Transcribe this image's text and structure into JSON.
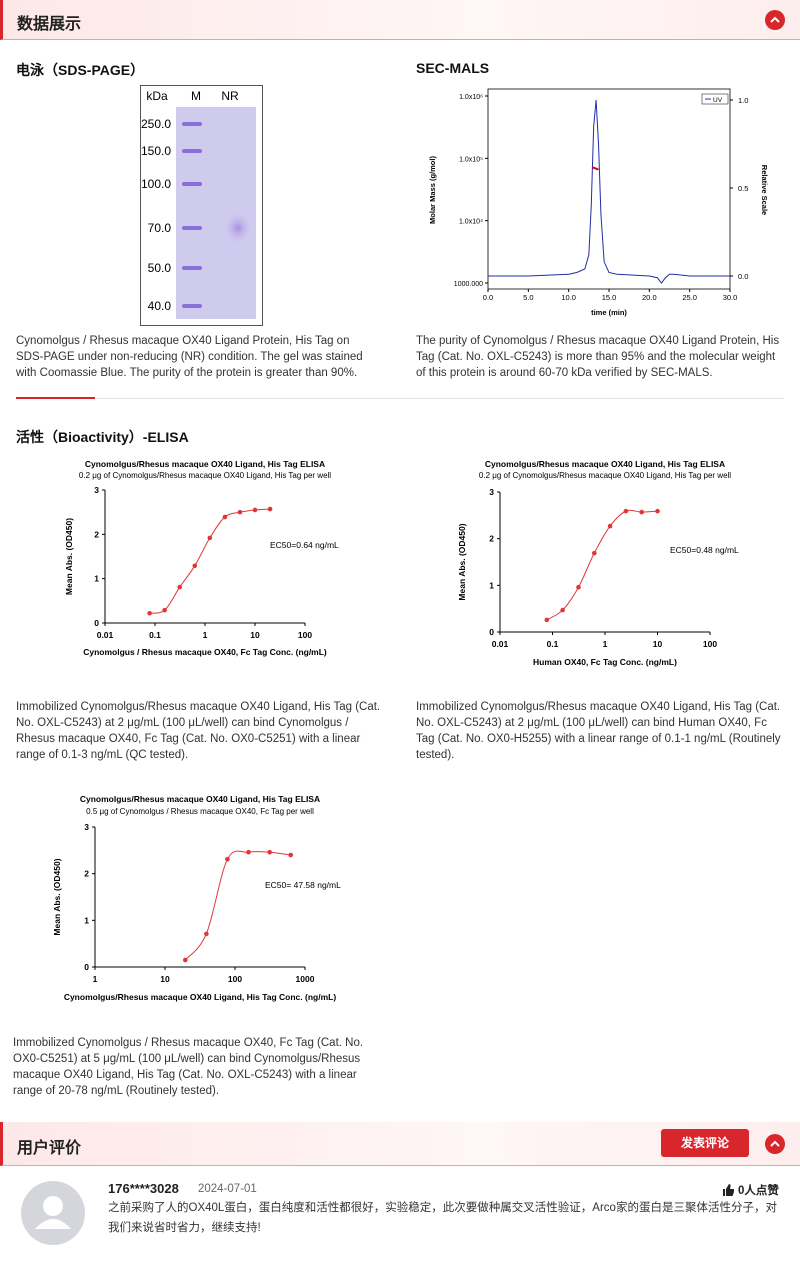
{
  "data_display": {
    "title": "数据展示",
    "sds_page": {
      "title": "电泳（SDS-PAGE）",
      "gel": {
        "header": [
          "kDa",
          "M",
          "NR"
        ],
        "markers": [
          "250.0",
          "150.0",
          "100.0",
          "70.0",
          "50.0",
          "40.0"
        ]
      },
      "caption": "Cynomolgus / Rhesus macaque OX40 Ligand Protein, His Tag on SDS-PAGE under non-reducing (NR) condition. The gel was stained with Coomassie Blue. The purity of the protein is greater than 90%."
    },
    "sec_mals": {
      "title": "SEC-MALS",
      "chart": {
        "type": "line",
        "xlabel": "time (min)",
        "ylabel": "Molar Mass (g/mol)",
        "y2label": "Relative Scale",
        "xlim": [
          0,
          30
        ],
        "xticks": [
          {
            "value": 0,
            "label": "0.0"
          },
          {
            "value": 5,
            "label": "5.0"
          },
          {
            "value": 10,
            "label": "10.0"
          },
          {
            "value": 15,
            "label": "15.0"
          },
          {
            "value": 20,
            "label": "20.0"
          },
          {
            "value": 25,
            "label": "25.0"
          },
          {
            "value": 30,
            "label": "30.0"
          }
        ],
        "log_y": true,
        "ylim": [
          1000,
          1000000
        ],
        "yticks": [
          {
            "value": 1000,
            "label": "1000.000"
          },
          {
            "value": 10000,
            "label": "1.0x10⁴"
          },
          {
            "value": 100000,
            "label": "1.0x10⁵"
          },
          {
            "value": 1000000,
            "label": "1.0x10⁶"
          }
        ],
        "y2lim": [
          0,
          1
        ],
        "y2ticks": [
          {
            "value": 0,
            "label": "0.0"
          },
          0.5,
          {
            "value": 1,
            "label": "1.0"
          }
        ],
        "series": [
          {
            "name": "UV",
            "color": "#1f2fa8",
            "axis": "y2",
            "x": [
              0,
              5,
              10,
              11,
              12,
              12.5,
              12.8,
              13.1,
              13.4,
              13.7,
              14.0,
              14.4,
              15,
              16,
              20,
              21,
              21.5,
              22,
              22.5,
              23,
              25,
              30
            ],
            "values": [
              0.0,
              0.0,
              0.01,
              0.02,
              0.04,
              0.12,
              0.4,
              0.85,
              1.0,
              0.75,
              0.35,
              0.08,
              0.02,
              0.01,
              0.0,
              -0.01,
              -0.04,
              -0.01,
              0.01,
              0.01,
              0.0,
              0.0
            ]
          },
          {
            "color": "#d01010",
            "x": [
              12.9,
              13.3,
              13.7
            ],
            "values": [
              72000,
              69000,
              66000
            ]
          }
        ]
      },
      "caption": "The purity of Cynomolgus / Rhesus macaque OX40 Ligand Protein, His Tag (Cat. No. OXL-C5243) is more than 95% and the molecular weight of this protein is around 60-70 kDa verified by SEC-MALS."
    },
    "bioactivity": {
      "title": "活性（Bioactivity）-ELISA",
      "charts": [
        {
          "type": "scatter",
          "title": "Cynomolgus/Rhesus macaque OX40 Ligand, His Tag  ELISA",
          "subtitle": "0.2 μg of Cynomolgus/Rhesus macaque OX40 Ligand, His Tag  per well",
          "xlabel": "Cynomolgus / Rhesus macaque OX40, Fc Tag Conc. (ng/mL)",
          "ylabel": "Mean Abs. (OD450)",
          "annotation": "EC50=0.64 ng/mL",
          "log_x": true,
          "xlim": [
            0.01,
            100
          ],
          "xticks": [
            0.01,
            0.1,
            1,
            10,
            100
          ],
          "ylim": [
            0,
            3
          ],
          "yticks": [
            0,
            1,
            2,
            3
          ],
          "color": "#e0363a",
          "x": [
            0.078,
            0.156,
            0.3125,
            0.625,
            1.25,
            2.5,
            5,
            10,
            20
          ],
          "values": [
            0.22,
            0.29,
            0.81,
            1.29,
            1.92,
            2.39,
            2.5,
            2.55,
            2.57
          ]
        },
        {
          "type": "scatter",
          "title": "Cynomolgus/Rhesus macaque OX40 Ligand, His Tag  ELISA",
          "subtitle": "0.2 μg of Cynomolgus/Rhesus macaque OX40 Ligand, His Tag  per well",
          "xlabel": "Human OX40, Fc Tag Conc. (ng/mL)",
          "ylabel": "Mean Abs. (OD450)",
          "annotation": "EC50=0.48 ng/mL",
          "log_x": true,
          "xlim": [
            0.01,
            100
          ],
          "xticks": [
            0.01,
            0.1,
            1,
            10,
            100
          ],
          "ylim": [
            0,
            3
          ],
          "yticks": [
            0,
            1,
            2,
            3
          ],
          "color": "#e0363a",
          "x": [
            0.078,
            0.156,
            0.3125,
            0.625,
            1.25,
            2.5,
            5,
            10
          ],
          "values": [
            0.26,
            0.47,
            0.96,
            1.69,
            2.27,
            2.59,
            2.57,
            2.59
          ]
        },
        {
          "type": "scatter",
          "title": "Cynomolgus/Rhesus macaque OX40 Ligand, His Tag  ELISA",
          "subtitle": "0.5 μg of Cynomolgus / Rhesus macaque OX40, Fc Tag per well",
          "xlabel": "Cynomolgus/Rhesus macaque OX40 Ligand, His Tag  Conc. (ng/mL)",
          "ylabel": "Mean Abs. (OD450)",
          "annotation": "EC50= 47.58 ng/mL",
          "log_x": true,
          "xlim": [
            1,
            1000
          ],
          "xticks": [
            1,
            10,
            100,
            1000
          ],
          "ylim": [
            0,
            3
          ],
          "yticks": [
            0,
            1,
            2,
            3
          ],
          "color": "#e0363a",
          "x": [
            19.5,
            39,
            78,
            156,
            312.5,
            625
          ],
          "values": [
            0.15,
            0.71,
            2.31,
            2.46,
            2.46,
            2.4
          ]
        }
      ],
      "captions": [
        "Immobilized Cynomolgus/Rhesus macaque OX40 Ligand, His Tag (Cat. No. OXL-C5243) at 2 μg/mL (100 μL/well) can bind Cynomolgus / Rhesus macaque OX40, Fc Tag (Cat. No. OX0-C5251) with a linear range of 0.1-3 ng/mL (QC tested).",
        "Immobilized Cynomolgus/Rhesus macaque OX40 Ligand, His Tag (Cat. No. OXL-C5243) at 2 μg/mL (100 μL/well) can bind Human OX40, Fc Tag (Cat. No. OX0-H5255) with a linear range of 0.1-1 ng/mL (Routinely tested).",
        "Immobilized Cynomolgus / Rhesus macaque OX40, Fc Tag (Cat. No. OX0-C5251) at 5 μg/mL (100 μL/well) can bind Cynomolgus/Rhesus macaque OX40 Ligand, His Tag (Cat. No. OXL-C5243) with a linear range of 20-78 ng/mL (Routinely tested)."
      ]
    }
  },
  "reviews": {
    "title": "用户评价",
    "button": "发表评论",
    "items": [
      {
        "user": "176****3028",
        "date": "2024-07-01",
        "likes": "0人点赞",
        "text": "之前采购了人的OX40L蛋白，蛋白纯度和活性都很好，实验稳定，此次要做种属交叉活性验证，Arco家的蛋白是三聚体活性分子，对我们来说省时省力，继续支持!"
      }
    ]
  }
}
